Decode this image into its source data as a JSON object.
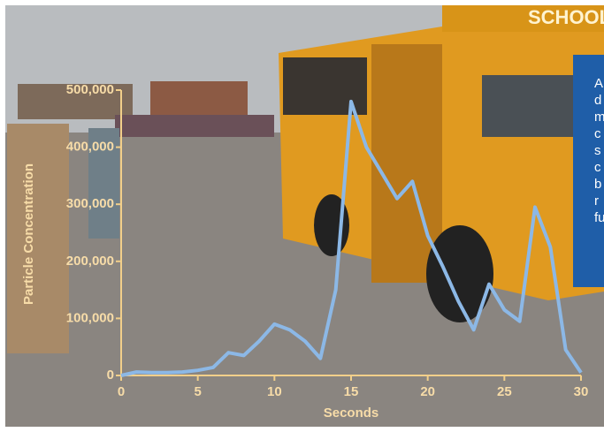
{
  "chart_data": {
    "type": "line",
    "x_label": "Seconds",
    "y_label": "Particle Concentration",
    "x": [
      0,
      1,
      2,
      3,
      4,
      5,
      6,
      7,
      8,
      9,
      10,
      11,
      12,
      13,
      14,
      15,
      16,
      17,
      18,
      19,
      20,
      21,
      22,
      23,
      24,
      25,
      26,
      27,
      28,
      29,
      30
    ],
    "series": [
      {
        "name": "Particle Concentration",
        "color": "#8cb8e6",
        "values": [
          0,
          6000,
          5000,
          5000,
          6000,
          9000,
          14000,
          40000,
          35000,
          60000,
          90000,
          80000,
          60000,
          30000,
          150000,
          480000,
          400000,
          355000,
          310000,
          340000,
          245000,
          190000,
          130000,
          80000,
          160000,
          115000,
          95000,
          295000,
          225000,
          45000,
          5000
        ]
      }
    ],
    "xlim": [
      0,
      30
    ],
    "xticks": [
      0,
      5,
      10,
      15,
      20,
      25,
      30
    ],
    "ylim": [
      0,
      500000
    ],
    "yticks": [
      0,
      {
        "value": 100000,
        "label": "100,000"
      },
      {
        "value": 200000,
        "label": "200,000"
      },
      {
        "value": 300000,
        "label": "300,000"
      },
      {
        "value": 400000,
        "label": "400,000"
      },
      {
        "value": 500000,
        "label": "500,000"
      }
    ]
  },
  "side_note": {
    "lines": [
      "A",
      "d",
      "m",
      "c",
      "s",
      "c",
      "b",
      "r",
      "fu"
    ]
  },
  "bus_sign": "SCHOOL"
}
